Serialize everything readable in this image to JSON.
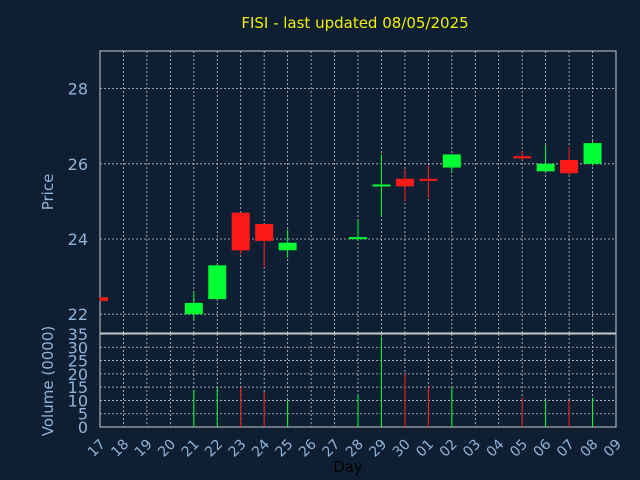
{
  "chart_data": {
    "type": "candlestick",
    "title": "FISI - last updated 08/05/2025",
    "xlabel": "Day",
    "price_axis": {
      "label": "Price",
      "ylim": [
        21.5,
        29.0
      ],
      "ticks": [
        22,
        24,
        26,
        28
      ]
    },
    "volume_axis": {
      "label": "Volume (0000)",
      "ylim": [
        0,
        35
      ],
      "ticks": [
        0,
        5,
        10,
        15,
        20,
        25,
        30,
        35
      ]
    },
    "grid": true,
    "x_tick_labels": [
      "17",
      "18",
      "19",
      "20",
      "21",
      "22",
      "23",
      "24",
      "25",
      "26",
      "27",
      "28",
      "29",
      "30",
      "01",
      "02",
      "03",
      "04",
      "05",
      "06",
      "07",
      "08",
      "09"
    ],
    "candles": [
      {
        "x": "17",
        "open": 22.45,
        "high": 22.45,
        "low": 22.35,
        "close": 22.35,
        "volume": 0
      },
      {
        "x": "21",
        "open": 22.0,
        "high": 22.6,
        "low": 21.85,
        "close": 22.3,
        "volume": 14
      },
      {
        "x": "22",
        "open": 22.4,
        "high": 23.3,
        "low": 22.4,
        "close": 23.3,
        "volume": 15
      },
      {
        "x": "23",
        "open": 24.7,
        "high": 24.7,
        "low": 23.6,
        "close": 23.7,
        "volume": 15
      },
      {
        "x": "24",
        "open": 24.4,
        "high": 24.4,
        "low": 23.25,
        "close": 23.95,
        "volume": 13
      },
      {
        "x": "25",
        "open": 23.7,
        "high": 24.25,
        "low": 23.5,
        "close": 23.9,
        "volume": 10
      },
      {
        "x": "28",
        "open": 24.05,
        "high": 24.5,
        "low": 23.95,
        "close": 24.05,
        "volume": 12
      },
      {
        "x": "29",
        "open": 25.45,
        "high": 26.25,
        "low": 24.6,
        "close": 25.45,
        "volume": 34
      },
      {
        "x": "30",
        "open": 25.6,
        "high": 25.85,
        "low": 25.0,
        "close": 25.4,
        "volume": 20
      },
      {
        "x": "01",
        "open": 25.6,
        "high": 25.95,
        "low": 25.1,
        "close": 25.55,
        "volume": 15
      },
      {
        "x": "02",
        "open": 25.9,
        "high": 26.25,
        "low": 25.8,
        "close": 26.25,
        "volume": 15
      },
      {
        "x": "05",
        "open": 26.2,
        "high": 26.35,
        "low": 26.1,
        "close": 26.15,
        "volume": 11
      },
      {
        "x": "06",
        "open": 25.8,
        "high": 26.5,
        "low": 25.8,
        "close": 26.0,
        "volume": 10
      },
      {
        "x": "07",
        "open": 26.1,
        "high": 26.45,
        "low": 25.7,
        "close": 25.75,
        "volume": 10
      },
      {
        "x": "08",
        "open": 26.0,
        "high": 26.6,
        "low": 25.95,
        "close": 26.55,
        "volume": 11
      }
    ],
    "colors": {
      "up": "#00ff33",
      "down": "#ff1a1a",
      "axis_text": "#8fb3d9",
      "grid": "#c8c8c8",
      "frame": "#c8c8c8"
    }
  }
}
